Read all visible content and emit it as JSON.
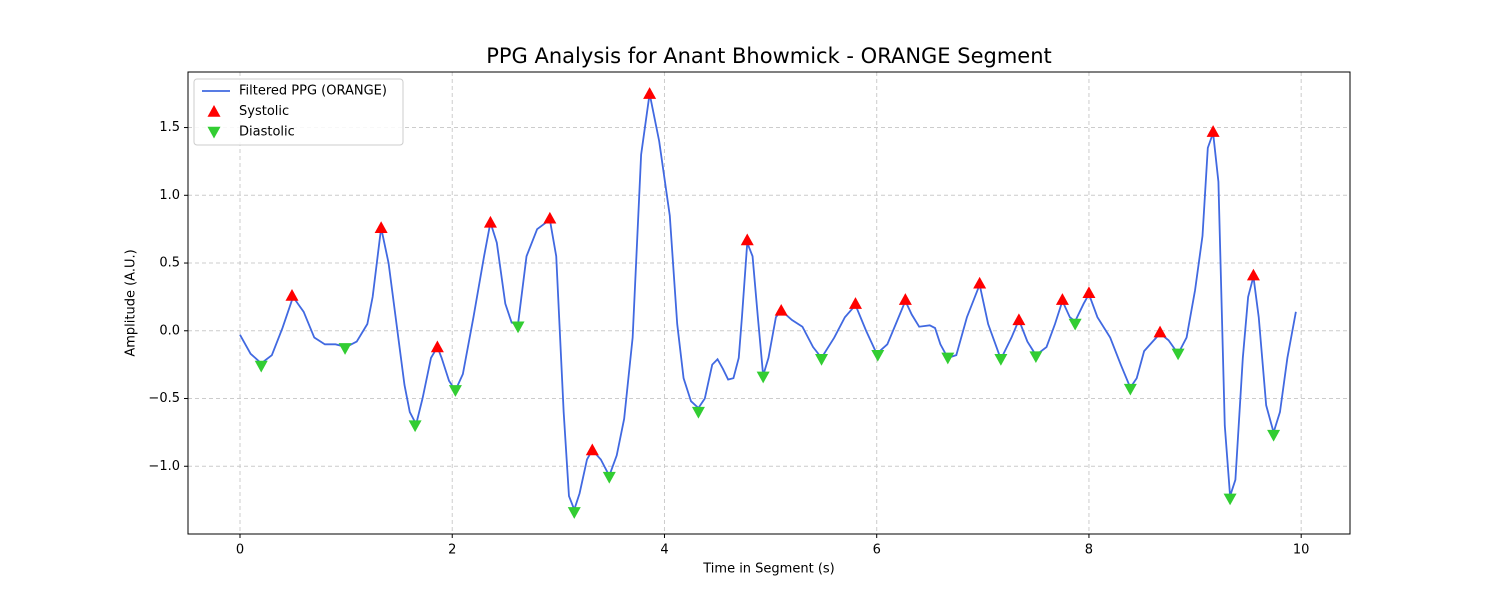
{
  "chart_data": {
    "type": "line",
    "title": "PPG Analysis for Anant Bhowmick - ORANGE Segment",
    "xlabel": "Time in Segment (s)",
    "ylabel": "Amplitude (A.U.)",
    "xlim": [
      -0.49,
      10.46
    ],
    "ylim": [
      -1.5,
      1.91
    ],
    "xticks": [
      0,
      2,
      4,
      6,
      8,
      10
    ],
    "yticks": [
      {
        "value": -1.0,
        "label": "−1.0"
      },
      {
        "value": -0.5,
        "label": "−0.5"
      },
      {
        "value": 0.0,
        "label": "0.0"
      },
      0.5,
      {
        "value": 1.0,
        "label": "1.0"
      },
      1.5
    ],
    "grid": true,
    "legend": "upper left",
    "series": [
      {
        "name": "Filtered PPG (ORANGE)",
        "color": "#4169e1",
        "marker": "none",
        "x": [
          0,
          0.1,
          0.2,
          0.3,
          0.4,
          0.5,
          0.6,
          0.7,
          0.8,
          0.9,
          1.0,
          1.1,
          1.2,
          1.25,
          1.33,
          1.4,
          1.5,
          1.55,
          1.6,
          1.66,
          1.72,
          1.8,
          1.86,
          1.9,
          1.97,
          2.03,
          2.1,
          2.2,
          2.3,
          2.36,
          2.42,
          2.5,
          2.56,
          2.62,
          2.7,
          2.8,
          2.92,
          2.98,
          3.05,
          3.1,
          3.15,
          3.2,
          3.27,
          3.32,
          3.4,
          3.48,
          3.55,
          3.62,
          3.7,
          3.78,
          3.86,
          3.95,
          4.05,
          4.12,
          4.18,
          4.25,
          4.32,
          4.38,
          4.45,
          4.5,
          4.55,
          4.6,
          4.65,
          4.7,
          4.73,
          4.78,
          4.83,
          4.88,
          4.93,
          4.98,
          5.05,
          5.1,
          5.2,
          5.3,
          5.4,
          5.48,
          5.6,
          5.7,
          5.8,
          5.9,
          6.0,
          6.1,
          6.18,
          6.27,
          6.33,
          6.4,
          6.5,
          6.55,
          6.6,
          6.67,
          6.75,
          6.85,
          6.97,
          7.05,
          7.17,
          7.27,
          7.34,
          7.42,
          7.5,
          7.6,
          7.68,
          7.75,
          7.82,
          7.87,
          7.95,
          8.0,
          8.08,
          8.2,
          8.3,
          8.39,
          8.45,
          8.52,
          8.6,
          8.67,
          8.75,
          8.84,
          8.92,
          9.0,
          9.07,
          9.12,
          9.17,
          9.22,
          9.28,
          9.33,
          9.38,
          9.45,
          9.5,
          9.55,
          9.6,
          9.67,
          9.74,
          9.8,
          9.87,
          9.95
        ],
        "values": [
          -0.03,
          -0.17,
          -0.24,
          -0.18,
          0.02,
          0.25,
          0.14,
          -0.05,
          -0.1,
          -0.1,
          -0.12,
          -0.08,
          0.05,
          0.25,
          0.76,
          0.5,
          -0.1,
          -0.4,
          -0.6,
          -0.69,
          -0.5,
          -0.2,
          -0.12,
          -0.2,
          -0.37,
          -0.44,
          -0.32,
          0.1,
          0.55,
          0.8,
          0.65,
          0.2,
          0.06,
          0.05,
          0.55,
          0.75,
          0.82,
          0.55,
          -0.6,
          -1.22,
          -1.32,
          -1.2,
          -0.95,
          -0.88,
          -0.95,
          -1.07,
          -0.92,
          -0.65,
          -0.05,
          1.3,
          1.75,
          1.4,
          0.85,
          0.05,
          -0.35,
          -0.52,
          -0.57,
          -0.5,
          -0.25,
          -0.21,
          -0.28,
          -0.36,
          -0.35,
          -0.2,
          0.1,
          0.65,
          0.55,
          0.1,
          -0.33,
          -0.2,
          0.1,
          0.15,
          0.08,
          0.03,
          -0.12,
          -0.2,
          -0.05,
          0.1,
          0.19,
          0.0,
          -0.17,
          -0.1,
          0.05,
          0.22,
          0.12,
          0.03,
          0.04,
          0.02,
          -0.1,
          -0.2,
          -0.18,
          0.1,
          0.34,
          0.05,
          -0.21,
          -0.05,
          0.08,
          -0.08,
          -0.18,
          -0.12,
          0.05,
          0.22,
          0.1,
          0.07,
          0.2,
          0.27,
          0.1,
          -0.05,
          -0.25,
          -0.42,
          -0.35,
          -0.15,
          -0.08,
          -0.02,
          -0.07,
          -0.17,
          -0.05,
          0.3,
          0.7,
          1.35,
          1.46,
          1.1,
          -0.7,
          -1.22,
          -1.1,
          -0.2,
          0.25,
          0.4,
          0.1,
          -0.55,
          -0.75,
          -0.6,
          -0.2,
          0.14
        ]
      },
      {
        "name": "Systolic",
        "color": "#ff0000",
        "marker": "^",
        "x": [
          0.49,
          1.33,
          1.86,
          2.36,
          2.92,
          3.32,
          3.86,
          4.78,
          5.1,
          5.8,
          6.27,
          6.97,
          7.34,
          7.75,
          8.0,
          8.67,
          9.17,
          9.55
        ],
        "values": [
          0.26,
          0.76,
          -0.12,
          0.8,
          0.83,
          -0.88,
          1.75,
          0.67,
          0.15,
          0.2,
          0.23,
          0.35,
          0.08,
          0.23,
          0.28,
          -0.01,
          1.47,
          0.41
        ]
      },
      {
        "name": "Diastolic",
        "color": "#32cd32",
        "marker": "v",
        "x": [
          0.2,
          0.99,
          1.65,
          2.03,
          2.62,
          3.15,
          3.48,
          4.32,
          4.93,
          5.48,
          6.01,
          6.67,
          7.17,
          7.5,
          7.87,
          8.39,
          8.84,
          9.33,
          9.74
        ],
        "values": [
          -0.26,
          -0.13,
          -0.7,
          -0.44,
          0.03,
          -1.34,
          -1.08,
          -0.6,
          -0.34,
          -0.21,
          -0.18,
          -0.2,
          -0.21,
          -0.19,
          0.05,
          -0.43,
          -0.17,
          -1.24,
          -0.77
        ]
      }
    ]
  }
}
